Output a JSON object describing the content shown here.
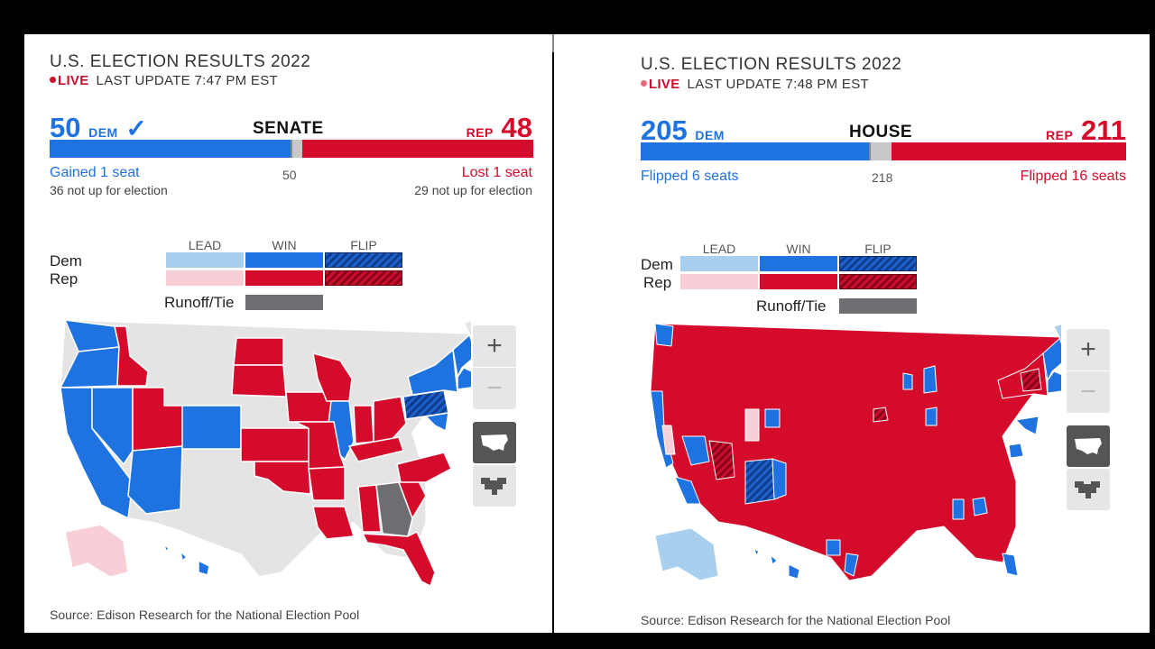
{
  "colors": {
    "dem": "#1f73e0",
    "rep": "#d50b2c",
    "dem_lead": "#a9cfee",
    "rep_lead": "#f8cfd6",
    "runoff": "#6d6e72",
    "no_race": "#e4e4e4"
  },
  "senate": {
    "title": "U.S. ELECTION RESULTS 2022",
    "live_label": "LIVE",
    "last_update": "LAST UPDATE 7:47 PM EST",
    "dem_count": "50",
    "dem_label": "DEM",
    "dem_check": "✓",
    "chamber": "SENATE",
    "rep_label": "REP",
    "rep_count": "48",
    "majority": "50",
    "dem_note": "Gained 1 seat",
    "rep_note": "Lost 1 seat",
    "dem_sub": "36 not up for election",
    "rep_sub": "29 not up for election",
    "bar": {
      "dem": 50,
      "undecided": 2,
      "rep": 48
    },
    "source": "Source: Edison Research for the National Election Pool"
  },
  "house": {
    "title": "U.S. ELECTION RESULTS 2022",
    "live_label": "LIVE",
    "last_update": "LAST UPDATE 7:48 PM EST",
    "dem_count": "205",
    "dem_label": "DEM",
    "chamber": "HOUSE",
    "rep_label": "REP",
    "rep_count": "211",
    "majority": "218",
    "dem_note": "Flipped 6 seats",
    "rep_note": "Flipped 16 seats",
    "bar": {
      "dem": 205,
      "undecided": 19,
      "rep": 211
    },
    "source": "Source: Edison Research for the National Election Pool"
  },
  "legend": {
    "lead": "LEAD",
    "win": "WIN",
    "flip": "FLIP",
    "dem": "Dem",
    "rep": "Rep",
    "runoff": "Runoff/Tie"
  },
  "map_controls": {
    "zoom_in": "+",
    "zoom_out": "−",
    "icons": [
      "us-map-icon",
      "district-map-icon"
    ]
  }
}
